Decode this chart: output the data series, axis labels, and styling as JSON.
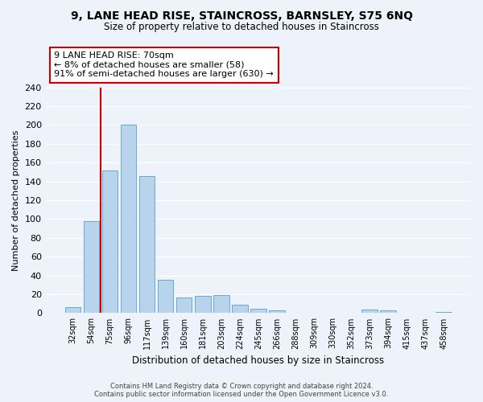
{
  "title": "9, LANE HEAD RISE, STAINCROSS, BARNSLEY, S75 6NQ",
  "subtitle": "Size of property relative to detached houses in Staincross",
  "xlabel": "Distribution of detached houses by size in Staincross",
  "ylabel": "Number of detached properties",
  "bar_labels": [
    "32sqm",
    "54sqm",
    "75sqm",
    "96sqm",
    "117sqm",
    "139sqm",
    "160sqm",
    "181sqm",
    "203sqm",
    "224sqm",
    "245sqm",
    "266sqm",
    "288sqm",
    "309sqm",
    "330sqm",
    "352sqm",
    "373sqm",
    "394sqm",
    "415sqm",
    "437sqm",
    "458sqm"
  ],
  "bar_values": [
    6,
    98,
    152,
    200,
    146,
    35,
    17,
    18,
    19,
    9,
    5,
    3,
    0,
    0,
    0,
    0,
    4,
    3,
    0,
    0,
    1
  ],
  "bar_color": "#b8d4ec",
  "bar_edge_color": "#6aaad4",
  "annotation_label": "9 LANE HEAD RISE: 70sqm",
  "annotation_line1": "← 8% of detached houses are smaller (58)",
  "annotation_line2": "91% of semi-detached houses are larger (630) →",
  "annotation_box_color": "#ffffff",
  "annotation_box_edge": "#cc0000",
  "vline_color": "#cc0000",
  "vline_x": 1.5,
  "ylim": [
    0,
    240
  ],
  "yticks": [
    0,
    20,
    40,
    60,
    80,
    100,
    120,
    140,
    160,
    180,
    200,
    220,
    240
  ],
  "footer_line1": "Contains HM Land Registry data © Crown copyright and database right 2024.",
  "footer_line2": "Contains public sector information licensed under the Open Government Licence v3.0.",
  "bg_color": "#eef2fa",
  "grid_color": "#ffffff"
}
